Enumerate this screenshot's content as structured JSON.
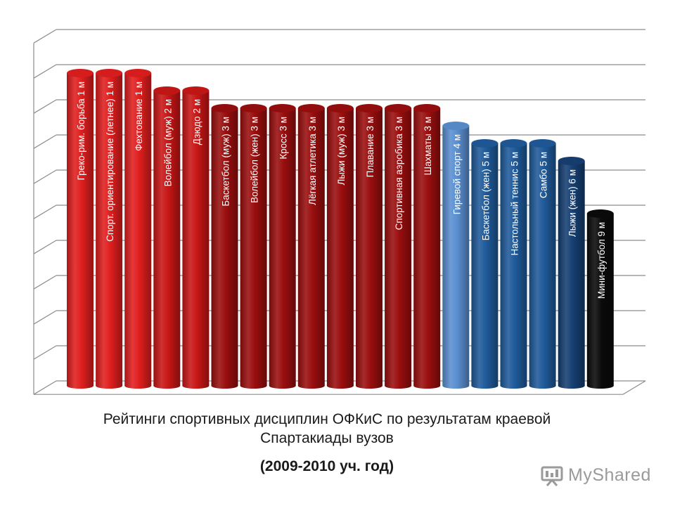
{
  "chart_data": {
    "type": "bar",
    "title": "",
    "xlabel": "",
    "ylabel": "",
    "ylim": [
      0,
      10
    ],
    "grid": true,
    "legend": "none",
    "categories": [
      "Греко-рим. борьба 1 м",
      "Спорт. ориентирование (летнее)  1 м",
      "Фехтование 1 м",
      "Волейбол (муж) 2 м",
      "Дзюдо 2 м",
      "Баскетбол (муж) 3 м",
      "Волейбол (жен) 3 м",
      "Кросс 3 м",
      "Лёгкая атлетика 3 м",
      "Лыжи (муж) 3 м",
      "Плавание 3 м",
      "Спортивная аэробика 3 м",
      "Шахматы 3 м",
      "Гиревой спорт 4 м",
      "Баскетбол (жен) 5 м",
      "Настольный теннис 5 м",
      "Самбо 5 м",
      "Лыжи (жен) 6 м",
      "Мини-футбол 9 м"
    ],
    "values": [
      9.5,
      9.5,
      9.5,
      9.0,
      9.0,
      8.5,
      8.5,
      8.5,
      8.5,
      8.5,
      8.5,
      8.5,
      8.5,
      8.0,
      7.5,
      7.5,
      7.5,
      7.0,
      5.5
    ],
    "colors": [
      "#e01e1e",
      "#e01e1e",
      "#e01e1e",
      "#c81616",
      "#c81616",
      "#9a0e0e",
      "#9a0e0e",
      "#9a0e0e",
      "#9a0e0e",
      "#9a0e0e",
      "#9a0e0e",
      "#9a0e0e",
      "#9a0e0e",
      "#5a8fd0",
      "#1f5a9a",
      "#1f5a9a",
      "#1f5a9a",
      "#163f72",
      "#0a0a0a"
    ]
  },
  "caption": {
    "line1": "Рейтинги спортивных дисциплин ОФКиС по результатам краевой",
    "line2": "Спартакиады вузов",
    "line3": "(2009-2010 уч. год)"
  },
  "watermark": {
    "text": "MyShared"
  }
}
